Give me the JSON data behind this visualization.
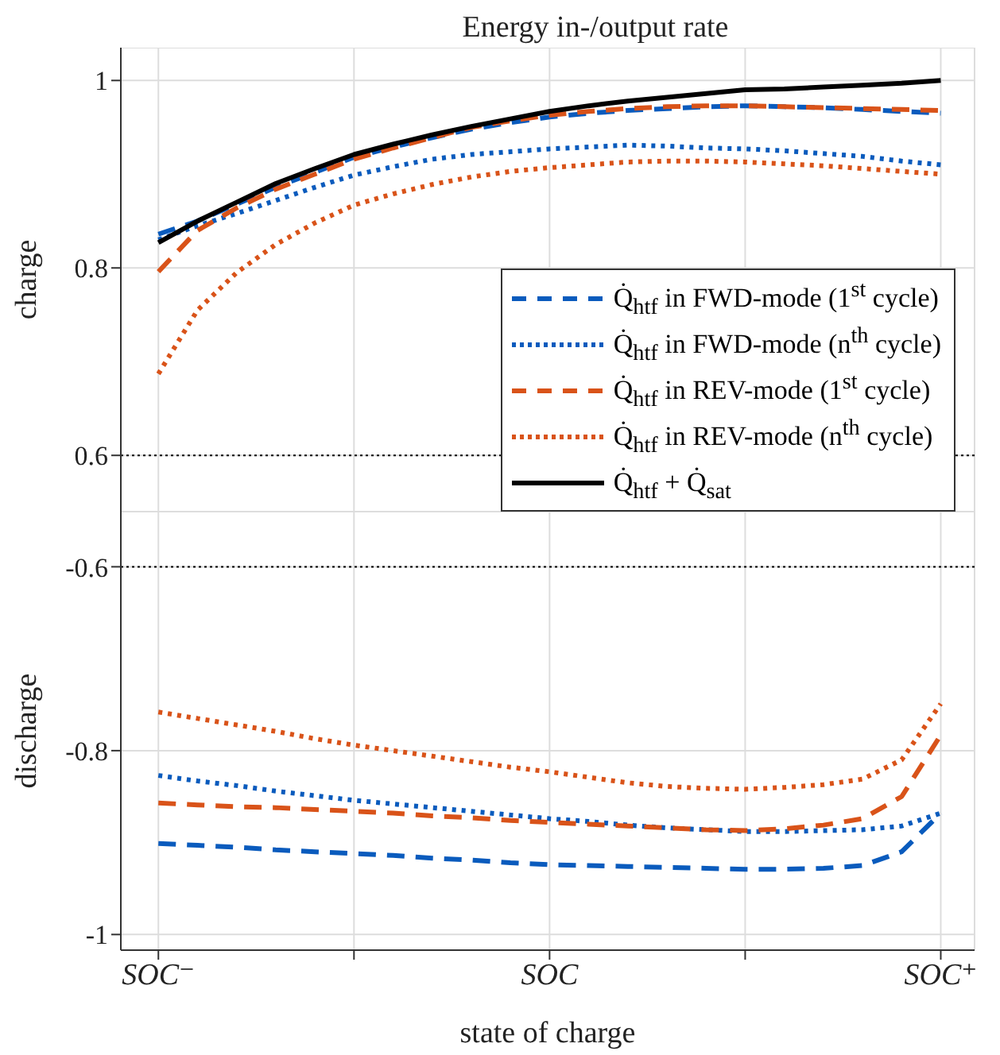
{
  "chart_data": [
    {
      "type": "line",
      "title": "Energy in-/output rate",
      "ylabel": "charge",
      "categories": [
        null,
        null,
        null,
        null,
        null,
        null,
        null,
        null,
        null,
        null,
        null,
        null,
        null,
        null,
        null,
        null,
        null,
        null,
        null,
        null,
        null
      ],
      "ylim": [
        0.54,
        1.035
      ],
      "yticks": [
        0.6,
        0.8,
        1
      ],
      "tick_labels": "y",
      "grid": true,
      "legend": "bottom right",
      "ref_lines": [
        {
          "axis": "y",
          "value": 0.6,
          "color": "#000000",
          "line_style": "dotted"
        }
      ],
      "series": [
        {
          "name": "Q̇$_{htf}$ in FWD-mode (1$^{st}$ cycle)",
          "color": "#0a5bbd",
          "line_style": "dashed",
          "values": [
            0.836,
            0.85,
            0.868,
            0.886,
            0.902,
            0.918,
            0.929,
            0.939,
            0.948,
            0.955,
            0.961,
            0.965,
            0.968,
            0.97,
            0.972,
            0.973,
            0.972,
            0.971,
            0.969,
            0.967,
            0.965
          ]
        },
        {
          "name": "Q̇$_{htf}$ in FWD-mode (n$^{th}$ cycle)",
          "color": "#0a5bbd",
          "line_style": "dotted",
          "values": [
            0.83,
            0.845,
            0.858,
            0.872,
            0.886,
            0.899,
            0.908,
            0.916,
            0.921,
            0.924,
            0.927,
            0.929,
            0.931,
            0.93,
            0.928,
            0.927,
            0.925,
            0.922,
            0.919,
            0.914,
            0.91
          ]
        },
        {
          "name": "Q̇$_{htf}$ in REV-mode (1$^{st}$ cycle)",
          "color": "#d95319",
          "line_style": "dashed",
          "values": [
            0.796,
            0.84,
            0.864,
            0.884,
            0.9,
            0.916,
            0.928,
            0.939,
            0.95,
            0.957,
            0.963,
            0.967,
            0.97,
            0.972,
            0.973,
            0.973,
            0.972,
            0.971,
            0.97,
            0.969,
            0.968
          ]
        },
        {
          "name": "Q̇$_{htf}$ in REV-mode (n$^{th}$ cycle)",
          "color": "#d95319",
          "line_style": "dotted",
          "values": [
            0.687,
            0.755,
            0.795,
            0.825,
            0.848,
            0.867,
            0.879,
            0.889,
            0.897,
            0.903,
            0.907,
            0.91,
            0.913,
            0.914,
            0.914,
            0.913,
            0.911,
            0.909,
            0.906,
            0.903,
            0.9
          ]
        },
        {
          "name": "Q̇$_{htf}$ + Q̇$_{sat}$",
          "color": "#000000",
          "line_style": "solid",
          "values": [
            0.827,
            0.85,
            0.87,
            0.89,
            0.906,
            0.921,
            0.932,
            0.942,
            0.951,
            0.959,
            0.967,
            0.973,
            0.978,
            0.982,
            0.986,
            0.99,
            0.991,
            0.993,
            0.995,
            0.997,
            1.0
          ]
        }
      ]
    },
    {
      "type": "line",
      "ylabel": "discharge",
      "xlabel": "state of charge",
      "categories": [
        "SOC⁻",
        null,
        null,
        null,
        null,
        null,
        null,
        null,
        null,
        null,
        "SOC",
        null,
        null,
        null,
        null,
        null,
        null,
        null,
        null,
        null,
        "SOC⁺"
      ],
      "ylim": [
        -1.017,
        -0.54
      ],
      "yticks": [
        -1,
        -0.8,
        -0.6
      ],
      "grid": true,
      "ref_lines": [
        {
          "axis": "y",
          "value": -0.6,
          "color": "#000000",
          "line_style": "dotted"
        }
      ],
      "series": [
        {
          "color": "#0a5bbd",
          "line_style": "dashed",
          "values": [
            -0.901,
            -0.903,
            -0.905,
            -0.908,
            -0.91,
            -0.912,
            -0.914,
            -0.917,
            -0.919,
            -0.922,
            -0.924,
            -0.925,
            -0.926,
            -0.927,
            -0.928,
            -0.929,
            -0.929,
            -0.928,
            -0.925,
            -0.91,
            -0.868
          ]
        },
        {
          "color": "#0a5bbd",
          "line_style": "dotted",
          "values": [
            -0.827,
            -0.833,
            -0.838,
            -0.844,
            -0.849,
            -0.854,
            -0.858,
            -0.862,
            -0.866,
            -0.87,
            -0.874,
            -0.877,
            -0.881,
            -0.884,
            -0.886,
            -0.888,
            -0.888,
            -0.887,
            -0.886,
            -0.882,
            -0.868
          ]
        },
        {
          "color": "#d95319",
          "line_style": "dashed",
          "values": [
            -0.857,
            -0.859,
            -0.861,
            -0.862,
            -0.864,
            -0.866,
            -0.868,
            -0.871,
            -0.873,
            -0.876,
            -0.878,
            -0.88,
            -0.882,
            -0.884,
            -0.886,
            -0.887,
            -0.885,
            -0.881,
            -0.874,
            -0.85,
            -0.783
          ]
        },
        {
          "color": "#d95319",
          "line_style": "dotted",
          "values": [
            -0.758,
            -0.765,
            -0.772,
            -0.779,
            -0.787,
            -0.794,
            -0.8,
            -0.806,
            -0.812,
            -0.818,
            -0.823,
            -0.829,
            -0.835,
            -0.839,
            -0.841,
            -0.842,
            -0.84,
            -0.837,
            -0.831,
            -0.81,
            -0.749
          ]
        }
      ]
    }
  ]
}
